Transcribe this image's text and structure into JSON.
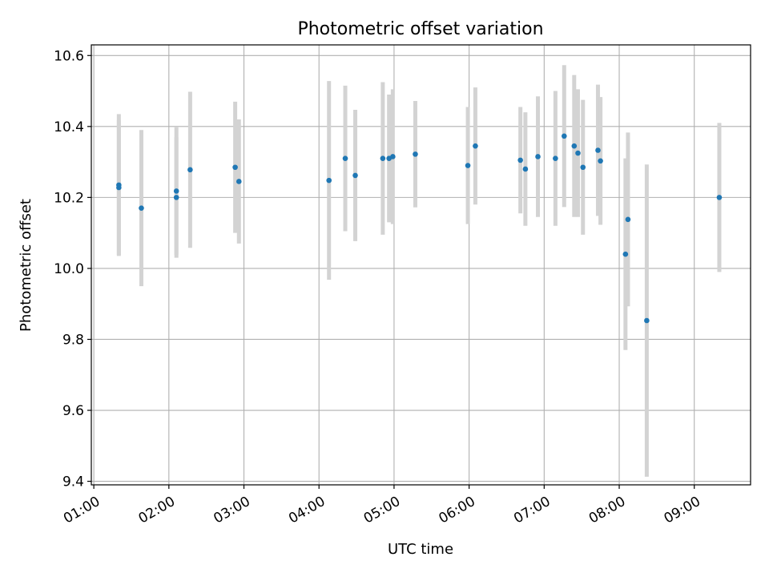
{
  "chart_data": {
    "type": "scatter",
    "title": "Photometric offset variation",
    "xlabel": "UTC time",
    "ylabel": "Photometric offset",
    "x_ticks": [
      "01:00",
      "02:00",
      "03:00",
      "04:00",
      "05:00",
      "06:00",
      "07:00",
      "08:00",
      "09:00"
    ],
    "y_ticks": [
      "9.4",
      "9.6",
      "9.8",
      "10.0",
      "10.2",
      "10.4",
      "10.6"
    ],
    "xlim": [
      "00:58",
      "09:45"
    ],
    "ylim": [
      9.39,
      10.63
    ],
    "grid": true,
    "colors": {
      "marker": "#1f77b4",
      "errorbar": "#d3d3d3",
      "grid": "#b0b0b0"
    },
    "points": [
      {
        "t": "01:20",
        "y": 10.235,
        "err": 0.2
      },
      {
        "t": "01:20",
        "y": 10.228,
        "err": 0.19
      },
      {
        "t": "01:38",
        "y": 10.17,
        "err": 0.22
      },
      {
        "t": "02:06",
        "y": 10.2,
        "err": 0.17
      },
      {
        "t": "02:06",
        "y": 10.218,
        "err": 0.18
      },
      {
        "t": "02:17",
        "y": 10.278,
        "err": 0.22
      },
      {
        "t": "02:53",
        "y": 10.285,
        "err": 0.185
      },
      {
        "t": "02:56",
        "y": 10.245,
        "err": 0.175
      },
      {
        "t": "04:08",
        "y": 10.248,
        "err": 0.28
      },
      {
        "t": "04:21",
        "y": 10.31,
        "err": 0.205
      },
      {
        "t": "04:29",
        "y": 10.262,
        "err": 0.185
      },
      {
        "t": "04:51",
        "y": 10.31,
        "err": 0.215
      },
      {
        "t": "04:56",
        "y": 10.31,
        "err": 0.18
      },
      {
        "t": "04:59",
        "y": 10.315,
        "err": 0.19
      },
      {
        "t": "05:17",
        "y": 10.322,
        "err": 0.15
      },
      {
        "t": "05:59",
        "y": 10.29,
        "err": 0.165
      },
      {
        "t": "06:05",
        "y": 10.345,
        "err": 0.165
      },
      {
        "t": "06:41",
        "y": 10.305,
        "err": 0.15
      },
      {
        "t": "06:45",
        "y": 10.28,
        "err": 0.16
      },
      {
        "t": "06:55",
        "y": 10.315,
        "err": 0.17
      },
      {
        "t": "07:09",
        "y": 10.31,
        "err": 0.19
      },
      {
        "t": "07:16",
        "y": 10.373,
        "err": 0.2
      },
      {
        "t": "07:24",
        "y": 10.345,
        "err": 0.2
      },
      {
        "t": "07:27",
        "y": 10.325,
        "err": 0.18
      },
      {
        "t": "07:31",
        "y": 10.285,
        "err": 0.19
      },
      {
        "t": "07:43",
        "y": 10.333,
        "err": 0.185
      },
      {
        "t": "07:45",
        "y": 10.303,
        "err": 0.18
      },
      {
        "t": "08:05",
        "y": 10.04,
        "err": 0.27
      },
      {
        "t": "08:07",
        "y": 10.138,
        "err": 0.245
      },
      {
        "t": "08:22",
        "y": 9.853,
        "err": 0.44
      },
      {
        "t": "09:20",
        "y": 10.2,
        "err": 0.21
      }
    ]
  }
}
